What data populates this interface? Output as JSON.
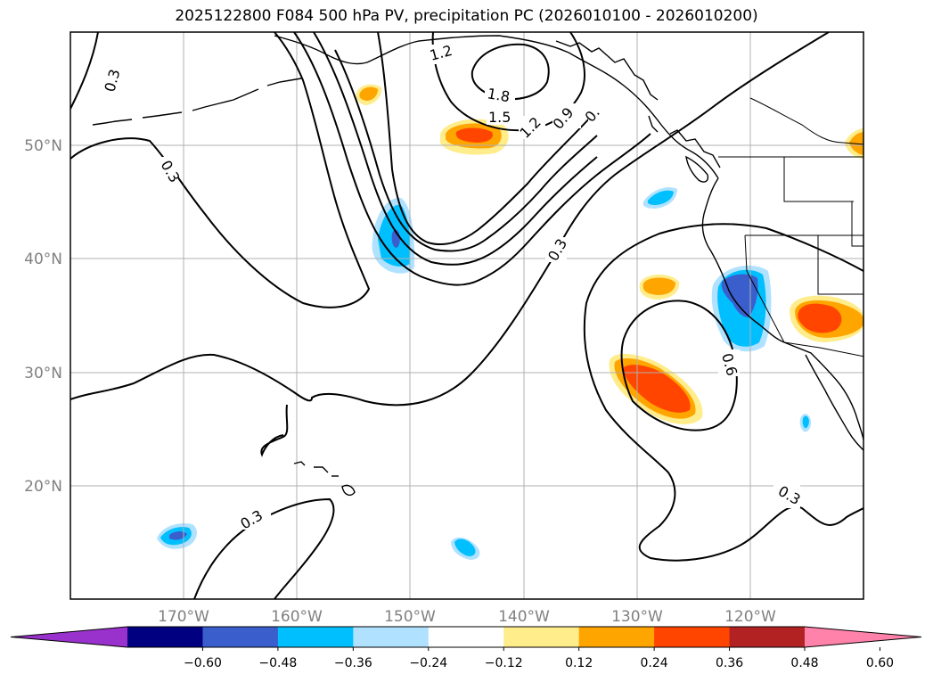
{
  "figure": {
    "title": "2025122800 F084 500 hPa PV, precipitation PC (2026010100 - 2026010200)"
  },
  "map": {
    "projection": "PlateCarree",
    "extent_lon": [
      -180,
      -110
    ],
    "extent_lat": [
      10,
      60
    ],
    "gridlines": true,
    "lat_labels": [
      "20°N",
      "30°N",
      "40°N",
      "50°N"
    ],
    "lon_labels": [
      "170°W",
      "160°W",
      "150°W",
      "140°W",
      "130°W",
      "120°W"
    ],
    "contour_labels": [
      "0.3",
      "0.3",
      "1.2",
      "1.8",
      "1.5",
      "1.2",
      "0.9",
      "0.",
      "0.3",
      "0.6",
      "0.3",
      "0.3"
    ],
    "precip_regions": [
      {
        "sign": "negative",
        "level": -0.36,
        "lon": -150.5,
        "lat": 41.5
      },
      {
        "sign": "negative",
        "level": -0.36,
        "lon": -121.5,
        "lat": 37
      },
      {
        "sign": "negative",
        "level": -0.36,
        "lon": -170.5,
        "lat": 15.5
      },
      {
        "sign": "negative",
        "level": -0.24,
        "lon": -127.5,
        "lat": 46
      },
      {
        "sign": "negative",
        "level": -0.24,
        "lon": -144.5,
        "lat": 14.5
      },
      {
        "sign": "negative",
        "level": -0.24,
        "lon": -114.5,
        "lat": 25.5
      },
      {
        "sign": "positive",
        "level": 0.36,
        "lon": -144.5,
        "lat": 51
      },
      {
        "sign": "positive",
        "level": 0.36,
        "lon": -128.5,
        "lat": 29
      },
      {
        "sign": "positive",
        "level": 0.36,
        "lon": -113.5,
        "lat": 35
      },
      {
        "sign": "positive",
        "level": 0.24,
        "lon": -129.5,
        "lat": 37.8
      },
      {
        "sign": "positive",
        "level": 0.24,
        "lon": -154.5,
        "lat": 54.5
      },
      {
        "sign": "positive",
        "level": 0.24,
        "lon": -110.2,
        "lat": 50
      }
    ]
  },
  "colorbar": {
    "extend": "both",
    "ticks": [
      "−0.60",
      "−0.48",
      "−0.36",
      "−0.24",
      "−0.12",
      "0.12",
      "0.24",
      "0.36",
      "0.48",
      "0.60"
    ],
    "colors": [
      "#9932cc",
      "#000080",
      "#3a5fcd",
      "#00bfff",
      "#b0e2ff",
      "#ffffff",
      "#ffec8b",
      "#ffa500",
      "#ff4500",
      "#b22222",
      "#ff82ab"
    ]
  }
}
